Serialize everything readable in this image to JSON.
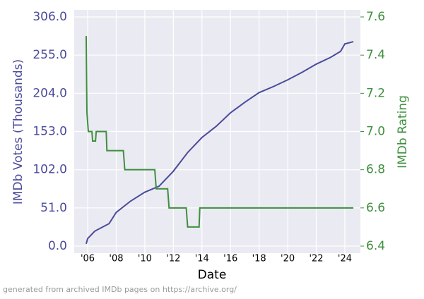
{
  "chart_data": {
    "type": "line",
    "x_label": "Date",
    "y_label": "IMDb Votes (Thousands)",
    "y2_label": "IMDb Rating",
    "xlim": [
      2005.06,
      2025.09
    ],
    "xticks": [
      {
        "value": 2006,
        "label": "'06"
      },
      {
        "value": 2008,
        "label": "'08"
      },
      {
        "value": 2010,
        "label": "'10"
      },
      {
        "value": 2012,
        "label": "'12"
      },
      {
        "value": 2014,
        "label": "'14"
      },
      {
        "value": 2016,
        "label": "'16"
      },
      {
        "value": 2018,
        "label": "'18"
      },
      {
        "value": 2020,
        "label": "'20"
      },
      {
        "value": 2022,
        "label": "'22"
      },
      {
        "value": 2024,
        "label": "'24"
      }
    ],
    "ylim": [
      0,
      306
    ],
    "yticks": [
      {
        "value": 0,
        "label": "0.0"
      },
      {
        "value": 51,
        "label": "51.0"
      },
      {
        "value": 102,
        "label": "102.0"
      },
      {
        "value": 153,
        "label": "153.0"
      },
      {
        "value": 204,
        "label": "204.0"
      },
      {
        "value": 255,
        "label": "255.0"
      },
      {
        "value": 306,
        "label": "306.0"
      }
    ],
    "y2lim": [
      6.4,
      7.6
    ],
    "y2ticks": [
      6.4,
      6.6,
      6.8,
      {
        "value": 7.0,
        "label": "7.0"
      },
      7.2,
      7.4,
      7.6
    ],
    "grid": true,
    "y_color": "#4b4b9b",
    "y2_color": "#3f8f3f",
    "series": [
      {
        "name": "IMDb Votes (Thousands)",
        "color": "#4b4b9b",
        "x": [
          2005.9,
          2006.0,
          2006.5,
          2007.5,
          2008,
          2009,
          2010,
          2011,
          2012,
          2013,
          2014,
          2015,
          2016,
          2017,
          2018,
          2019,
          2020,
          2021,
          2022,
          2023,
          2023.7,
          2024,
          2024.6
        ],
        "values": [
          3,
          10,
          20,
          30,
          45,
          60,
          72,
          80,
          100,
          125,
          145,
          160,
          178,
          192,
          205,
          213,
          222,
          232,
          243,
          252,
          260,
          270,
          273
        ]
      },
      {
        "name": "IMDb Rating",
        "color": "#3f8f3f",
        "axis": "y2",
        "x": [
          2005.9,
          2005.95,
          2006.05,
          2006.3,
          2006.35,
          2006.55,
          2006.6,
          2007.3,
          2007.35,
          2008.5,
          2008.6,
          2010.7,
          2010.8,
          2011.6,
          2011.7,
          2012.9,
          2013.0,
          2013.8,
          2013.85,
          2024.6
        ],
        "values": [
          7.5,
          7.1,
          7.0,
          7.0,
          6.95,
          6.95,
          7.0,
          7.0,
          6.9,
          6.9,
          6.8,
          6.8,
          6.7,
          6.7,
          6.6,
          6.6,
          6.5,
          6.5,
          6.6,
          6.6
        ]
      }
    ]
  },
  "footer": "generated from archived IMDb pages on https://archive.org/"
}
